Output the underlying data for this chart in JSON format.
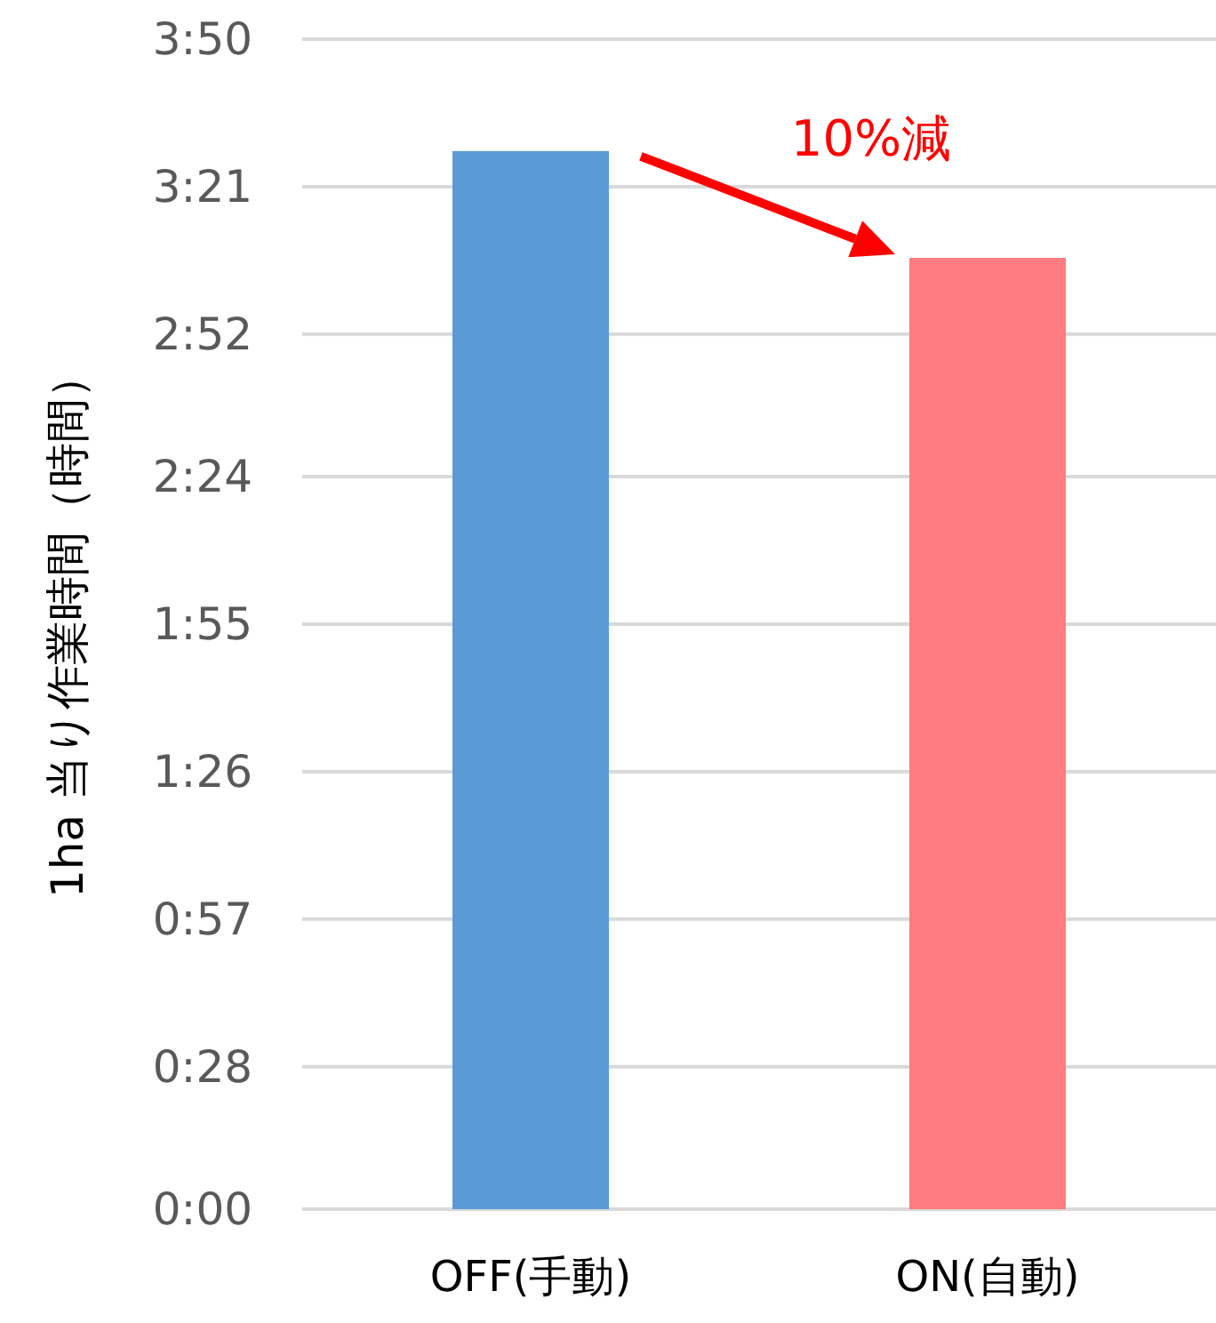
{
  "chart_data": {
    "type": "bar",
    "ylabel": "1ha 当り作業時間（時間）",
    "categories": [
      "OFF(手動)",
      "ON(自動)"
    ],
    "values": [
      208,
      187
    ],
    "colors": [
      "#5b9bd5",
      "#ff7c80"
    ],
    "ylim": [
      0,
      230
    ],
    "yticks": [
      {
        "value": 0,
        "label": "0:00"
      },
      {
        "value": 28,
        "label": "0:28"
      },
      {
        "value": 57,
        "label": "0:57"
      },
      {
        "value": 86,
        "label": "1:26"
      },
      {
        "value": 115,
        "label": "1:55"
      },
      {
        "value": 144,
        "label": "2:24"
      },
      {
        "value": 172,
        "label": "2:52"
      },
      {
        "value": 201,
        "label": "3:21"
      },
      {
        "value": 230,
        "label": "3:50"
      }
    ],
    "grid": "y",
    "annotations": [
      "10%減"
    ]
  }
}
